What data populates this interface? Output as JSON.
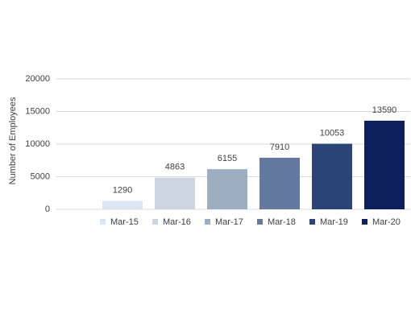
{
  "chart_data": {
    "type": "bar",
    "y_label": "Number of Employees",
    "categories": [
      null,
      "Mar-15",
      "Mar-16",
      "Mar-17",
      "Mar-18",
      "Mar-19",
      "Mar-20"
    ],
    "values": [
      null,
      1290,
      4863,
      6155,
      7910,
      10053,
      13590
    ],
    "colors": [
      null,
      "#dce6f2",
      "#cdd5e0",
      "#9dadc2",
      "#64799f",
      "#2b4478",
      "#0d1f5c"
    ],
    "ylim": [
      0,
      20000
    ],
    "yticks": [
      0,
      5000,
      10000,
      15000,
      20000
    ],
    "grid": true
  }
}
